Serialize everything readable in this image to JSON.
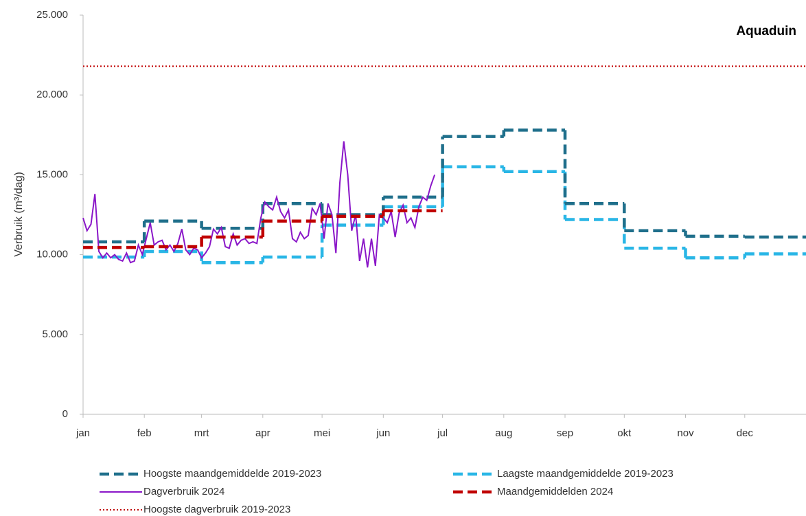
{
  "chart_data": {
    "type": "line",
    "annotation": "Aquaduin",
    "ylabel": "Verbruik (m³/dag)",
    "xlim": [
      0,
      366
    ],
    "xticks": [
      {
        "value": 0,
        "label": "jan"
      },
      {
        "value": 31,
        "label": "feb"
      },
      {
        "value": 60,
        "label": "mrt"
      },
      {
        "value": 91,
        "label": "apr"
      },
      {
        "value": 121,
        "label": "mei"
      },
      {
        "value": 152,
        "label": "jun"
      },
      {
        "value": 182,
        "label": "jul"
      },
      {
        "value": 213,
        "label": "aug"
      },
      {
        "value": 244,
        "label": "sep"
      },
      {
        "value": 274,
        "label": "okt"
      },
      {
        "value": 305,
        "label": "nov"
      },
      {
        "value": 335,
        "label": "dec"
      }
    ],
    "ylim": [
      0,
      25000
    ],
    "yticks": [
      0,
      {
        "value": 5000,
        "label": "5.000"
      },
      {
        "value": 10000,
        "label": "10.000"
      },
      {
        "value": 15000,
        "label": "15.000"
      },
      {
        "value": 20000,
        "label": "20.000"
      },
      {
        "value": 25000,
        "label": "25.000"
      }
    ],
    "series": [
      {
        "name": "Hoogste maandgemiddelde 2019-2023",
        "kind": "step",
        "style": "dashed",
        "color": "#1f6f8b",
        "values": [
          10800,
          12100,
          11650,
          13200,
          12500,
          13600,
          17400,
          17800,
          13200,
          11500,
          11150,
          11100
        ]
      },
      {
        "name": "Laagste maandgemiddelde 2019-2023",
        "kind": "step",
        "style": "dashed",
        "color": "#29b6e6",
        "values": [
          9850,
          10200,
          9500,
          9850,
          11850,
          13000,
          15500,
          15200,
          12200,
          10400,
          9800,
          10050
        ]
      },
      {
        "name": "Dagverbruik 2024",
        "kind": "line",
        "style": "solid",
        "color": "#8a16c8",
        "x": [
          0,
          2,
          4,
          6,
          8,
          10,
          12,
          14,
          16,
          18,
          20,
          22,
          24,
          26,
          28,
          30,
          32,
          34,
          36,
          38,
          40,
          42,
          44,
          46,
          48,
          50,
          52,
          54,
          56,
          58,
          60,
          62,
          64,
          66,
          68,
          70,
          72,
          74,
          76,
          78,
          80,
          82,
          84,
          86,
          88,
          90,
          92,
          94,
          96,
          98,
          100,
          102,
          104,
          106,
          108,
          110,
          112,
          114,
          116,
          118,
          120,
          122,
          124,
          126,
          128,
          130,
          132,
          134,
          136,
          138,
          140,
          142,
          144,
          146,
          148,
          150,
          152,
          154,
          156,
          158,
          160,
          162,
          164,
          166,
          168,
          170,
          172,
          174,
          176,
          178
        ],
        "values": [
          12300,
          11500,
          11900,
          13800,
          10200,
          9800,
          10100,
          9800,
          10000,
          9700,
          9600,
          10100,
          9500,
          9600,
          10600,
          10000,
          11000,
          12000,
          10600,
          10800,
          10900,
          10300,
          10600,
          10200,
          10700,
          11600,
          10300,
          10000,
          10400,
          10300,
          9800,
          10100,
          10500,
          11600,
          11300,
          11700,
          10500,
          10400,
          11300,
          10600,
          10900,
          11000,
          10700,
          10800,
          10700,
          12300,
          13300,
          13000,
          12800,
          13600,
          12700,
          12300,
          12800,
          11000,
          10800,
          11400,
          11000,
          11200,
          12900,
          12500,
          13200,
          11000,
          13200,
          12500,
          10100,
          14500,
          17100,
          15000,
          11500,
          12500,
          9600,
          11000,
          9200,
          11000,
          9300,
          12500,
          12300,
          12000,
          12700,
          11100,
          12600,
          13100,
          12000,
          12300,
          11700,
          13000,
          13600,
          13400,
          14300,
          15000
        ]
      },
      {
        "name": "Maandgemiddelden 2024",
        "kind": "step",
        "style": "dashed",
        "color": "#c00000",
        "values": [
          10450,
          10500,
          11100,
          12100,
          12400,
          12750,
          null,
          null,
          null,
          null,
          null,
          null
        ]
      },
      {
        "name": "Hoogste dagverbruik 2019-2023",
        "kind": "hline",
        "style": "dotted",
        "color": "#c00000",
        "values": [
          21800
        ]
      }
    ]
  }
}
